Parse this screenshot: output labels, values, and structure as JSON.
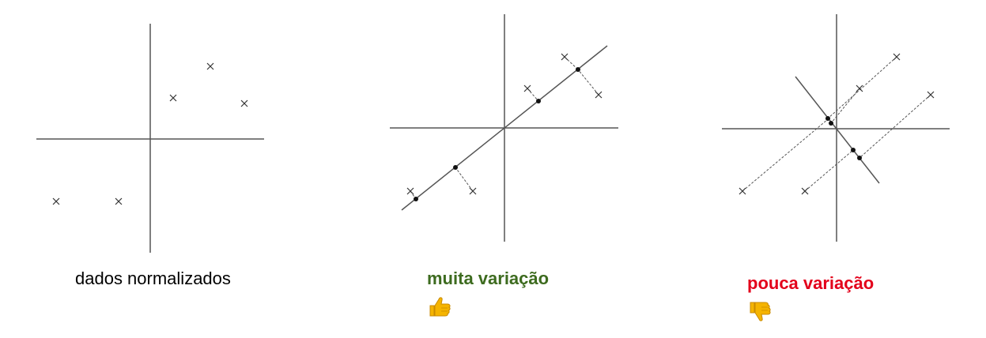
{
  "panels": [
    {
      "caption": "dados normalizados",
      "caption_color": "#000000",
      "icon": null
    },
    {
      "caption": "muita variação",
      "caption_color": "#3d6b1f",
      "icon": "thumbs-up-icon"
    },
    {
      "caption": "pouca variação",
      "caption_color": "#e3001b",
      "icon": "thumbs-down-icon"
    }
  ],
  "colors": {
    "axis": "#555555",
    "projection_line": "#555555",
    "marker": "#333333",
    "thumb_fill": "#f5b400",
    "thumb_stroke": "#c98a00"
  }
}
